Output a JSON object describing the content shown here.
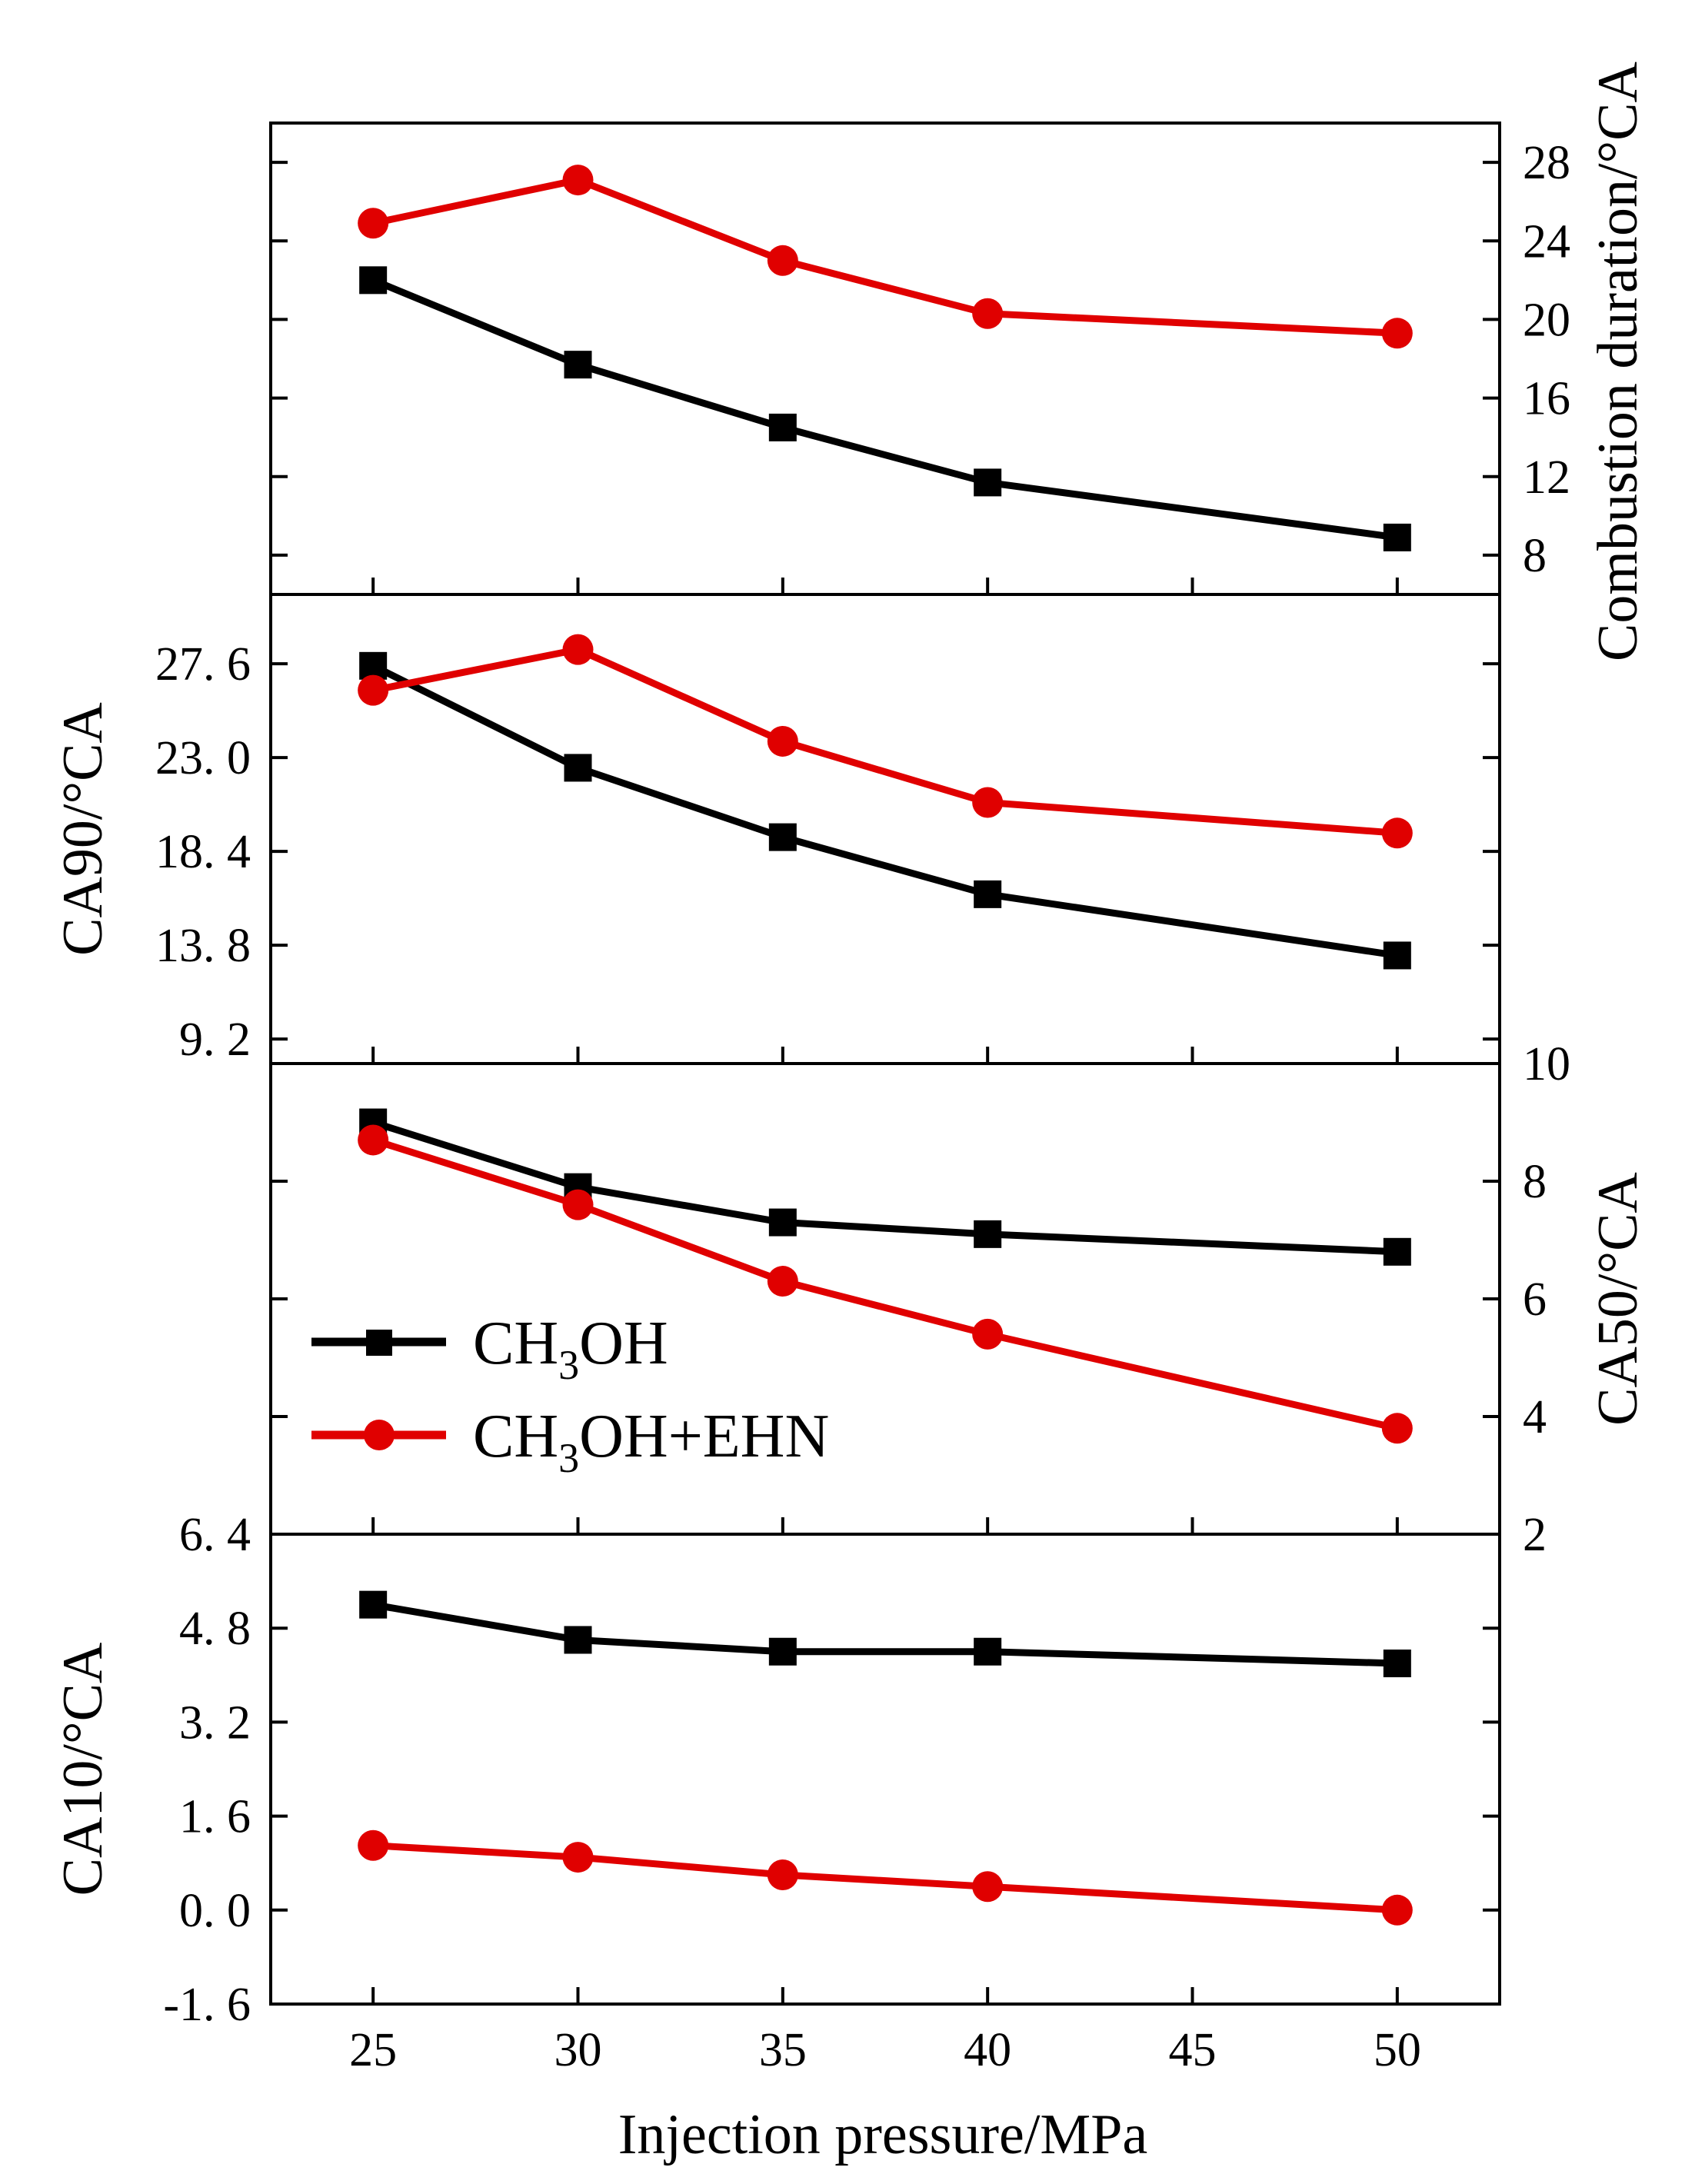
{
  "chart_data": {
    "type": "line",
    "xlabel": "Injection pressure/MPa",
    "x_ticks": [
      "25",
      "30",
      "35",
      "40",
      "45",
      "50"
    ],
    "xlim": [
      22.5,
      52.5
    ],
    "x": [
      25,
      30,
      35,
      40,
      50
    ],
    "legend": {
      "placement": "middle-left",
      "entries": [
        {
          "series": "ch3oh",
          "main": "CH",
          "sub": "3",
          "tail": "OH"
        },
        {
          "series": "ch3oh_ehn",
          "main": "CH",
          "sub": "3",
          "tail": "OH+EHN"
        }
      ]
    },
    "colors": {
      "ch3oh": "#000000",
      "ch3oh_ehn": "#e00000"
    },
    "panels": [
      {
        "id": "combustion-duration",
        "ylabel": "Combustion duration/°CA",
        "axis_side": "right",
        "ylim": [
          6,
          30
        ],
        "ticks": [
          "8",
          "12",
          "16",
          "20",
          "24",
          "28"
        ],
        "series": [
          {
            "key": "ch3oh",
            "name": "CH3OH",
            "values": [
              22.0,
              17.7,
              14.5,
              11.7,
              8.9
            ]
          },
          {
            "key": "ch3oh_ehn",
            "name": "CH3OH+EHN",
            "values": [
              24.9,
              27.1,
              23.0,
              20.3,
              19.3
            ]
          }
        ]
      },
      {
        "id": "ca90",
        "ylabel": "CA90/°CA",
        "axis_side": "left",
        "ylim": [
          8.0,
          31.0
        ],
        "ticks": [
          "9. 2",
          "13. 8",
          "18. 4",
          "23. 0",
          "27. 6"
        ],
        "series": [
          {
            "key": "ch3oh",
            "name": "CH3OH",
            "values": [
              27.5,
              22.5,
              19.1,
              16.3,
              13.3
            ]
          },
          {
            "key": "ch3oh_ehn",
            "name": "CH3OH+EHN",
            "values": [
              26.3,
              28.3,
              23.8,
              20.8,
              19.3
            ]
          }
        ]
      },
      {
        "id": "ca50",
        "ylabel": "CA50/°CA",
        "axis_side": "right",
        "ylim": [
          2,
          10
        ],
        "ticks": [
          "2",
          "4",
          "6",
          "8",
          "10"
        ],
        "series": [
          {
            "key": "ch3oh",
            "name": "CH3OH",
            "values": [
              9.0,
              7.9,
              7.3,
              7.1,
              6.8
            ]
          },
          {
            "key": "ch3oh_ehn",
            "name": "CH3OH+EHN",
            "values": [
              8.7,
              7.6,
              6.3,
              5.4,
              3.8
            ]
          }
        ]
      },
      {
        "id": "ca10",
        "ylabel": "CA10/°CA",
        "axis_side": "left",
        "ylim": [
          -1.6,
          6.4
        ],
        "ticks": [
          "-1. 6",
          "0. 0",
          "1. 6",
          "3. 2",
          "4. 8",
          "6. 4"
        ],
        "series": [
          {
            "key": "ch3oh",
            "name": "CH3OH",
            "values": [
              5.2,
              4.6,
              4.4,
              4.4,
              4.2
            ]
          },
          {
            "key": "ch3oh_ehn",
            "name": "CH3OH+EHN",
            "values": [
              1.1,
              0.9,
              0.6,
              0.4,
              0.0
            ]
          }
        ]
      }
    ]
  }
}
